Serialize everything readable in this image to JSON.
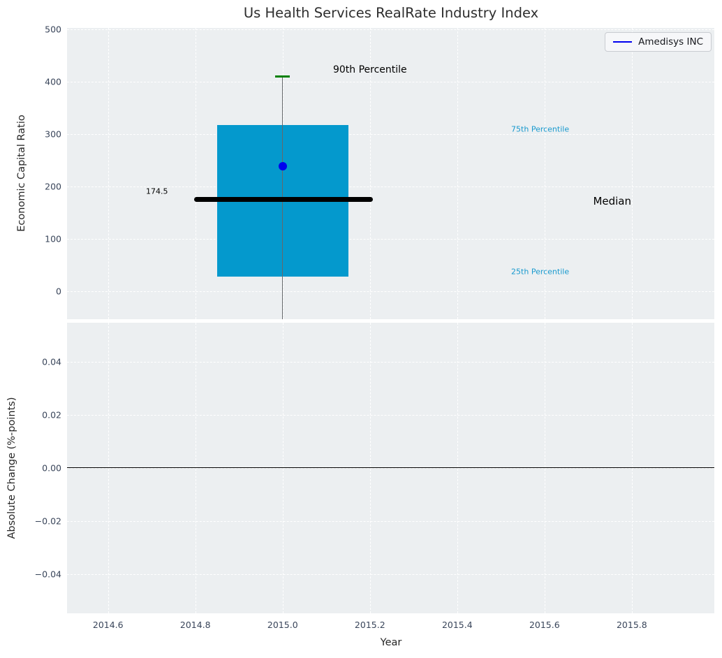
{
  "title": "Us Health Services RealRate Industry Index",
  "legend": {
    "label": "Amedisys INC",
    "position": "upper right"
  },
  "colors": {
    "figure_bg": "#ffffff",
    "axes_bg": "#eceff1",
    "grid": "#ffffff",
    "box_fill": "#0499cd",
    "median_line": "#000000",
    "whisker": "#65686b",
    "cap": "#008000",
    "company_dot": "#0000ee",
    "legend_line": "#0000ee",
    "zero_line": "#000000",
    "tick_label": "#39455a",
    "axis_label": "#262626",
    "title_color": "#2e2e2e",
    "percentile_label": "#1899ce"
  },
  "chart_data": [
    {
      "type": "boxplot",
      "title": "Us Health Services RealRate Industry Index",
      "xlabel": "Year",
      "ylabel": "Economic Capital Ratio",
      "xlim": [
        2014.506,
        2015.989
      ],
      "ylim": [
        -54,
        502
      ],
      "grid": true,
      "legend_entries": [
        "Amedisys INC"
      ],
      "x_ticks": {
        "values": [
          2014.6,
          2014.8,
          2015.0,
          2015.2,
          2015.4,
          2015.6,
          2015.8
        ],
        "labels": [
          "2014.6",
          "2014.8",
          "2015.0",
          "2015.2",
          "2015.4",
          "2015.6",
          "2015.8"
        ]
      },
      "y_ticks": {
        "values": [
          500,
          400,
          300,
          200,
          100,
          0
        ],
        "labels": [
          "500",
          "400",
          "300",
          "200",
          "100",
          "0"
        ]
      },
      "box": {
        "x_center": 2015.0,
        "x_left": 2014.85,
        "x_right": 2015.15,
        "p90": 410,
        "p75": 317,
        "median": 174.5,
        "p25": 28,
        "whisker_bottom_clipped_at": -54,
        "cap_x_left": 2014.983,
        "cap_x_right": 2015.017,
        "median_line_x1": 2014.797,
        "median_line_x2": 2015.206
      },
      "series": [
        {
          "name": "Amedisys INC",
          "x": 2015.0,
          "y": 238
        }
      ],
      "annotations": [
        {
          "text": "174.5",
          "x": 2014.712,
          "y": 190,
          "color": "#000000",
          "size": 11
        },
        {
          "text": "90th Percentile",
          "x": 2015.2,
          "y": 422,
          "color": "#000000",
          "size": 14
        },
        {
          "text": "75th Percentile",
          "x": 2015.59,
          "y": 309,
          "color": "#1899ce",
          "size": 11
        },
        {
          "text": "Median",
          "x": 2015.755,
          "y": 171,
          "color": "#000000",
          "size": 15
        },
        {
          "text": "25th Percentile",
          "x": 2015.59,
          "y": 37,
          "color": "#1899ce",
          "size": 11
        }
      ]
    },
    {
      "type": "line",
      "xlabel": "Year",
      "ylabel": "Absolute Change (%-points)",
      "xlim": [
        2014.506,
        2015.989
      ],
      "ylim": [
        -0.0546,
        0.0546
      ],
      "grid": true,
      "y_ticks": {
        "values": [
          0.04,
          0.02,
          0,
          -0.02,
          -0.04
        ],
        "labels": [
          "0.04",
          "0.02",
          "0.00",
          "−0.02",
          "−0.04"
        ]
      },
      "zero_line_y": 0.0,
      "series": []
    }
  ]
}
